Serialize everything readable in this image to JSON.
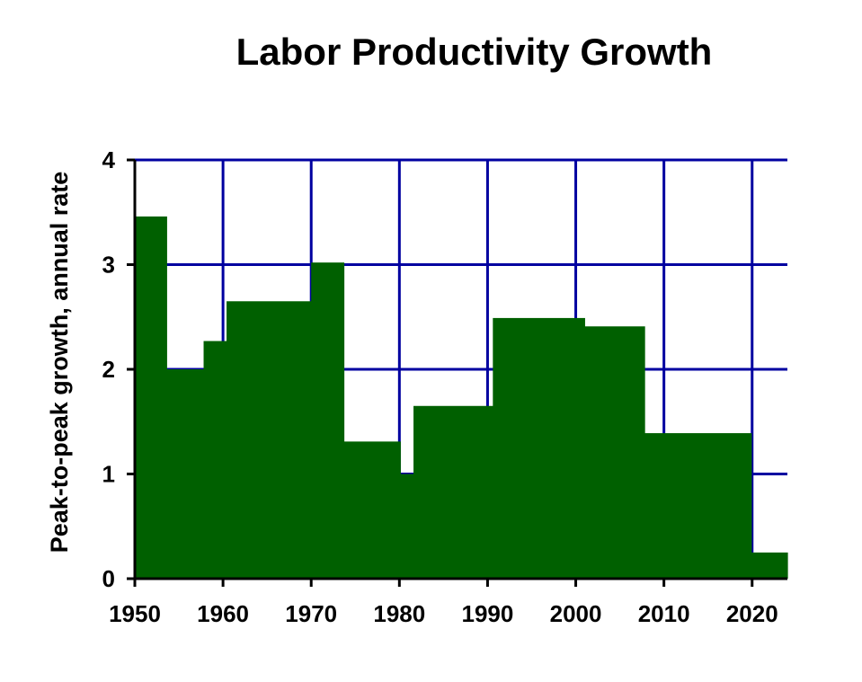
{
  "chart_data": {
    "type": "area",
    "title": "Labor Productivity Growth",
    "xlabel": "",
    "ylabel": "Peak-to-peak growth, annual rate",
    "xlim": [
      1950,
      2024
    ],
    "ylim": [
      0,
      4
    ],
    "x_ticks": [
      1950,
      1960,
      1970,
      1980,
      1990,
      2000,
      2010,
      2020
    ],
    "y_ticks": [
      0,
      1,
      2,
      3,
      4
    ],
    "grid": true,
    "colors": {
      "fill": "#006000",
      "grid": "#0000a0",
      "axis": "#000000"
    },
    "segments": [
      {
        "start": 1950.0,
        "end": 1953.6,
        "value": 3.46
      },
      {
        "start": 1953.6,
        "end": 1957.8,
        "value": 2.0
      },
      {
        "start": 1957.8,
        "end": 1960.4,
        "value": 2.27
      },
      {
        "start": 1960.4,
        "end": 1970.0,
        "value": 2.65
      },
      {
        "start": 1970.0,
        "end": 1973.7,
        "value": 3.02
      },
      {
        "start": 1973.7,
        "end": 1980.1,
        "value": 1.31
      },
      {
        "start": 1980.1,
        "end": 1981.6,
        "value": 1.0
      },
      {
        "start": 1981.6,
        "end": 1990.6,
        "value": 1.65
      },
      {
        "start": 1990.6,
        "end": 2001.0,
        "value": 2.49
      },
      {
        "start": 2001.0,
        "end": 2007.8,
        "value": 2.41
      },
      {
        "start": 2007.8,
        "end": 2019.9,
        "value": 1.39
      },
      {
        "start": 2019.9,
        "end": 2024.0,
        "value": 0.25
      }
    ]
  }
}
